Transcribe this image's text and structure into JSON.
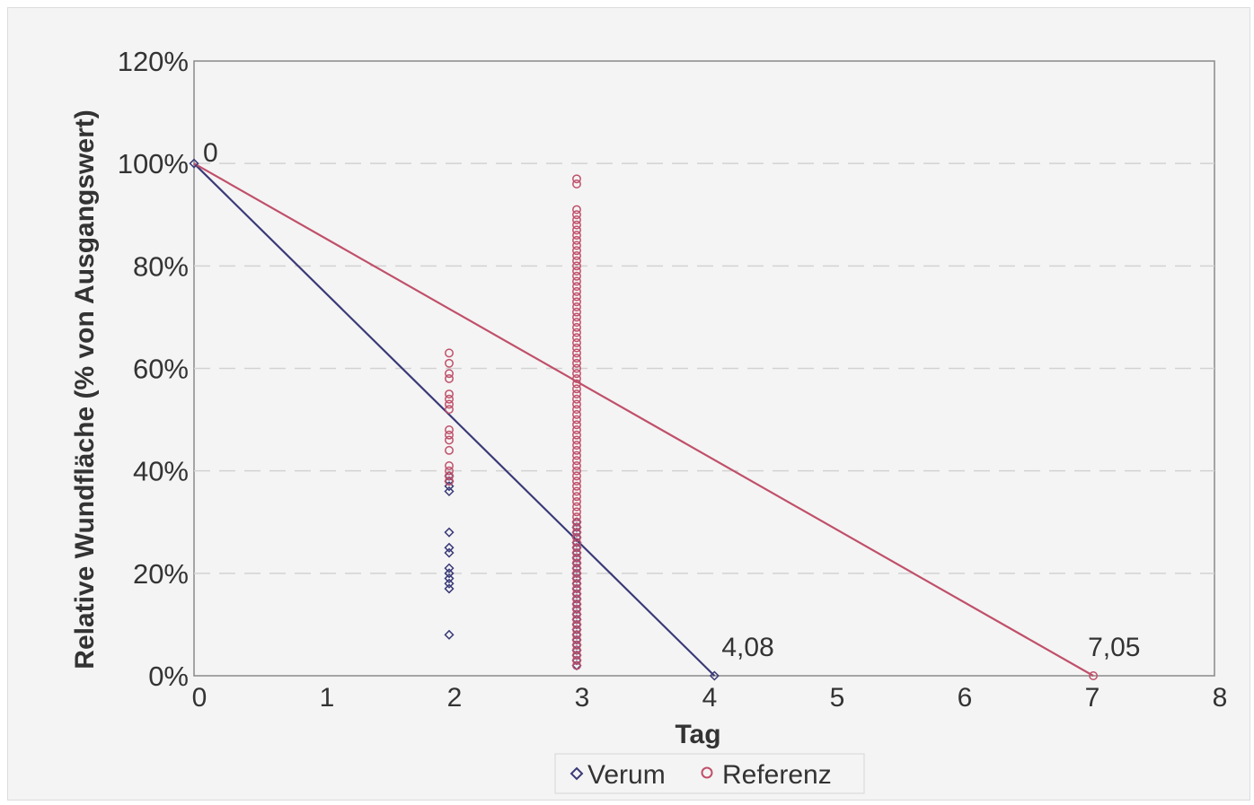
{
  "chart_data": {
    "type": "scatter",
    "xlabel": "Tag",
    "ylabel": "Relative Wundfläche (% von Ausgangswert)",
    "xlim": [
      0,
      8
    ],
    "ylim": [
      0,
      120
    ],
    "x_ticks": [
      "0",
      "1",
      "2",
      "3",
      "4",
      "5",
      "6",
      "7",
      "8"
    ],
    "y_ticks": [
      "0%",
      "20%",
      "40%",
      "60%",
      "80%",
      "100%",
      "120%"
    ],
    "grid": "horizontal",
    "legend": {
      "position": "bottom",
      "entries": [
        "Verum",
        "Referenz"
      ]
    },
    "colors": {
      "Verum": "#3a3a78",
      "Referenz": "#c0506a"
    },
    "series": [
      {
        "name": "Verum",
        "marker": "diamond",
        "points": [
          [
            0,
            100
          ],
          [
            2,
            39
          ],
          [
            2,
            38
          ],
          [
            2,
            37
          ],
          [
            2,
            36
          ],
          [
            2,
            28
          ],
          [
            2,
            25
          ],
          [
            2,
            24
          ],
          [
            2,
            21
          ],
          [
            2,
            20
          ],
          [
            2,
            19
          ],
          [
            2,
            18
          ],
          [
            2,
            17
          ],
          [
            2,
            8
          ],
          [
            3,
            30
          ],
          [
            3,
            29
          ],
          [
            3,
            28
          ],
          [
            3,
            27
          ],
          [
            3,
            26
          ],
          [
            3,
            25
          ],
          [
            3,
            24
          ],
          [
            3,
            23
          ],
          [
            3,
            22
          ],
          [
            3,
            21
          ],
          [
            3,
            20
          ],
          [
            3,
            19
          ],
          [
            3,
            18
          ],
          [
            3,
            17
          ],
          [
            3,
            16
          ],
          [
            3,
            15
          ],
          [
            3,
            14
          ],
          [
            3,
            13
          ],
          [
            3,
            12
          ],
          [
            3,
            11
          ],
          [
            3,
            10
          ],
          [
            3,
            9
          ],
          [
            3,
            8
          ],
          [
            3,
            7
          ],
          [
            3,
            6
          ],
          [
            3,
            5
          ],
          [
            3,
            4
          ],
          [
            3,
            3
          ],
          [
            3,
            2
          ],
          [
            4.08,
            0
          ]
        ],
        "fit_line": [
          [
            0,
            100
          ],
          [
            4.08,
            0
          ]
        ]
      },
      {
        "name": "Referenz",
        "marker": "circle",
        "points": [
          [
            2,
            63
          ],
          [
            2,
            61
          ],
          [
            2,
            59
          ],
          [
            2,
            58
          ],
          [
            2,
            55
          ],
          [
            2,
            54
          ],
          [
            2,
            53
          ],
          [
            2,
            52
          ],
          [
            2,
            48
          ],
          [
            2,
            47
          ],
          [
            2,
            46
          ],
          [
            2,
            44
          ],
          [
            2,
            41
          ],
          [
            2,
            40
          ],
          [
            2,
            39
          ],
          [
            2,
            38
          ],
          [
            3,
            97
          ],
          [
            3,
            96
          ],
          [
            3,
            91
          ],
          [
            3,
            90
          ],
          [
            3,
            89
          ],
          [
            3,
            88
          ],
          [
            3,
            87
          ],
          [
            3,
            86
          ],
          [
            3,
            85
          ],
          [
            3,
            84
          ],
          [
            3,
            83
          ],
          [
            3,
            82
          ],
          [
            3,
            81
          ],
          [
            3,
            80
          ],
          [
            3,
            79
          ],
          [
            3,
            78
          ],
          [
            3,
            77
          ],
          [
            3,
            76
          ],
          [
            3,
            75
          ],
          [
            3,
            74
          ],
          [
            3,
            73
          ],
          [
            3,
            72
          ],
          [
            3,
            71
          ],
          [
            3,
            70
          ],
          [
            3,
            69
          ],
          [
            3,
            68
          ],
          [
            3,
            67
          ],
          [
            3,
            66
          ],
          [
            3,
            65
          ],
          [
            3,
            64
          ],
          [
            3,
            63
          ],
          [
            3,
            62
          ],
          [
            3,
            61
          ],
          [
            3,
            60
          ],
          [
            3,
            59
          ],
          [
            3,
            58
          ],
          [
            3,
            57
          ],
          [
            3,
            56
          ],
          [
            3,
            55
          ],
          [
            3,
            54
          ],
          [
            3,
            53
          ],
          [
            3,
            52
          ],
          [
            3,
            51
          ],
          [
            3,
            50
          ],
          [
            3,
            49
          ],
          [
            3,
            48
          ],
          [
            3,
            47
          ],
          [
            3,
            46
          ],
          [
            3,
            45
          ],
          [
            3,
            44
          ],
          [
            3,
            43
          ],
          [
            3,
            42
          ],
          [
            3,
            41
          ],
          [
            3,
            40
          ],
          [
            3,
            39
          ],
          [
            3,
            38
          ],
          [
            3,
            37
          ],
          [
            3,
            36
          ],
          [
            3,
            35
          ],
          [
            3,
            34
          ],
          [
            3,
            33
          ],
          [
            3,
            32
          ],
          [
            3,
            31
          ],
          [
            3,
            30
          ],
          [
            3,
            29
          ],
          [
            3,
            28
          ],
          [
            3,
            27
          ],
          [
            3,
            26
          ],
          [
            3,
            25
          ],
          [
            3,
            24
          ],
          [
            3,
            23
          ],
          [
            3,
            22
          ],
          [
            3,
            21
          ],
          [
            3,
            20
          ],
          [
            3,
            19
          ],
          [
            3,
            18
          ],
          [
            3,
            17
          ],
          [
            3,
            16
          ],
          [
            3,
            15
          ],
          [
            3,
            14
          ],
          [
            3,
            13
          ],
          [
            3,
            12
          ],
          [
            3,
            11
          ],
          [
            3,
            10
          ],
          [
            3,
            9
          ],
          [
            3,
            8
          ],
          [
            3,
            7
          ],
          [
            3,
            6
          ],
          [
            3,
            5
          ],
          [
            3,
            4
          ],
          [
            3,
            3
          ],
          [
            3,
            2
          ],
          [
            7.05,
            0
          ]
        ],
        "fit_line": [
          [
            0,
            100
          ],
          [
            7.05,
            0
          ]
        ]
      }
    ],
    "annotations": [
      {
        "text": "0",
        "x": 0,
        "y": 100
      },
      {
        "text": "4,08",
        "x": 4.08,
        "y": 0
      },
      {
        "text": "7,05",
        "x": 7.05,
        "y": 0
      }
    ]
  }
}
